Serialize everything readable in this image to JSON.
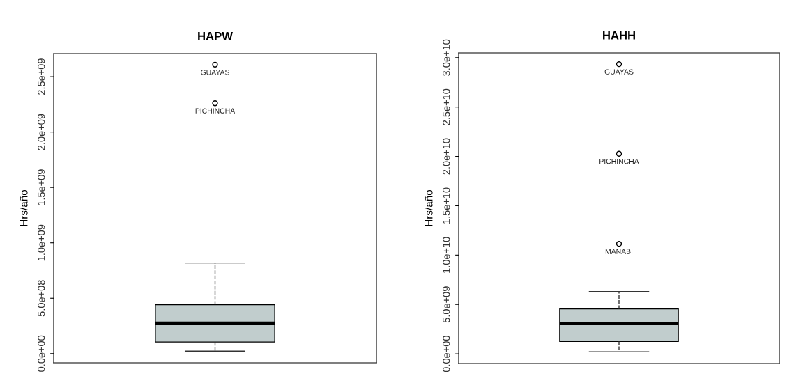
{
  "chart_data": [
    {
      "type": "box",
      "title": "HAPW",
      "ylabel": "Hrs/año",
      "categories": [
        null
      ],
      "boxes": [
        {
          "low": 22000000.0,
          "q1": 105000000.0,
          "median": 276000000.0,
          "q3": 441000000.0,
          "high": 818000000.0,
          "outliers": [
            2608000000.0,
            2260000000.0
          ]
        }
      ],
      "color": "#c1cdcd",
      "ylim": [
        -83000000.0,
        2708000000.0
      ],
      "yticks": [
        {
          "value": 0,
          "label": "0.0e+00"
        },
        {
          "value": 500000000.0,
          "label": "5.0e+08"
        },
        {
          "value": 1000000000.0,
          "label": "1.0e+09"
        },
        {
          "value": 1500000000.0,
          "label": "1.5e+09"
        },
        {
          "value": 2000000000.0,
          "label": "2.0e+09"
        },
        {
          "value": 2500000000.0,
          "label": "2.5e+09"
        }
      ],
      "annotations": [
        "GUAYAS",
        "PICHINCHA"
      ],
      "grid": false,
      "legend": false
    },
    {
      "type": "box",
      "title": "HAHH",
      "ylabel": "Hrs/año",
      "categories": [
        null
      ],
      "boxes": [
        {
          "low": 200000000.0,
          "q1": 1260000000.0,
          "median": 3070000000.0,
          "q3": 4550000000.0,
          "high": 6310000000.0,
          "outliers": [
            29340000000.0,
            20270000000.0,
            11140000000.0
          ]
        }
      ],
      "color": "#c1cdcd",
      "ylim": [
        -980000000.0,
        30480000000.0
      ],
      "yticks": [
        {
          "value": 0,
          "label": "0.0e+00"
        },
        {
          "value": 5000000000.0,
          "label": "5.0e+09"
        },
        {
          "value": 10000000000.0,
          "label": "1.0e+10"
        },
        {
          "value": 15000000000.0,
          "label": "1.5e+10"
        },
        {
          "value": 20000000000.0,
          "label": "2.0e+10"
        },
        {
          "value": 25000000000.0,
          "label": "2.5e+10"
        },
        {
          "value": 30000000000.0,
          "label": "3.0e+10"
        }
      ],
      "annotations": [
        "GUAYAS",
        "PICHINCHA",
        "MANABI"
      ],
      "grid": false,
      "legend": false
    }
  ]
}
